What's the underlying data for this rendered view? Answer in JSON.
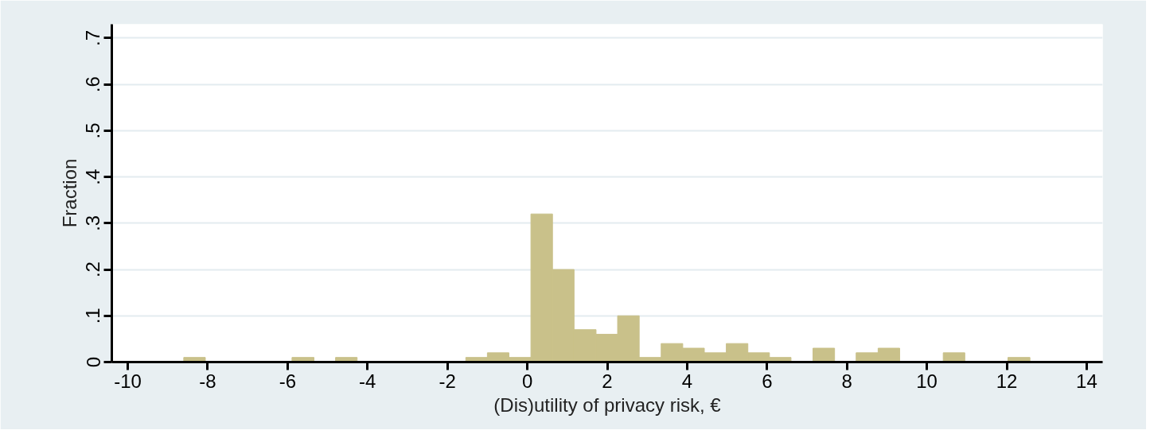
{
  "chart_data": {
    "type": "histogram",
    "xlabel": "(Dis)utility of privacy risk, €",
    "ylabel": "Fraction",
    "bins": [
      -8.6,
      -8.06,
      -7.51,
      -6.97,
      -6.43,
      -5.89,
      -5.34,
      -4.8,
      -4.26,
      -3.71,
      -3.17,
      -2.63,
      -2.08,
      -1.54,
      -1.0,
      -0.46,
      0.09,
      0.63,
      1.17,
      1.72,
      2.26,
      2.8,
      3.35,
      3.89,
      4.43,
      4.98,
      5.52,
      6.06,
      6.6,
      7.15,
      7.69,
      8.23,
      8.78,
      9.32,
      9.86,
      10.41,
      10.95,
      11.49,
      12.03,
      12.58
    ],
    "values": [
      0.01,
      0,
      0,
      0,
      0,
      0.01,
      0,
      0.01,
      0,
      0,
      0,
      0,
      0,
      0.01,
      0.02,
      0.01,
      0.32,
      0.2,
      0.07,
      0.06,
      0.1,
      0.01,
      0.04,
      0.03,
      0.02,
      0.04,
      0.02,
      0.01,
      0,
      0.03,
      0,
      0.02,
      0.03,
      0,
      0,
      0.02,
      0,
      0,
      0.01
    ],
    "color": "#c9c18a",
    "xlim": [
      -10.4,
      14.4
    ],
    "ylim": [
      0,
      0.73
    ],
    "xticks": [
      -10,
      -8,
      -6,
      -4,
      -2,
      0,
      2,
      4,
      6,
      8,
      10,
      12,
      14
    ],
    "yticks": [
      0,
      {
        "value": 0.1,
        "label": ".1"
      },
      {
        "value": 0.2,
        "label": ".2"
      },
      {
        "value": 0.3,
        "label": ".3"
      },
      {
        "value": 0.4,
        "label": ".4"
      },
      {
        "value": 0.5,
        "label": ".5"
      },
      {
        "value": 0.6,
        "label": ".6"
      },
      {
        "value": 0.7,
        "label": ".7"
      }
    ],
    "grid": "y"
  }
}
